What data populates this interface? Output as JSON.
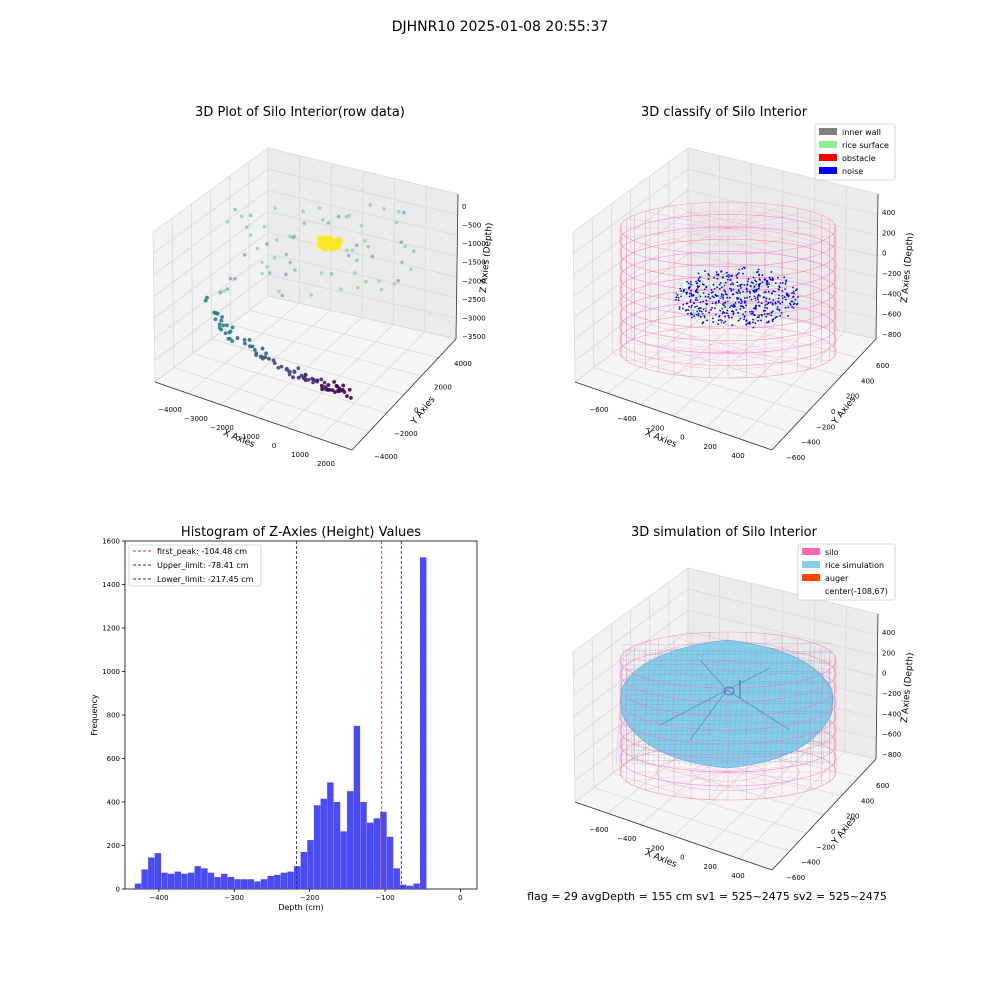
{
  "suptitle": "DJHNR10 2025-01-08 20:55:37",
  "footer": "flag = 29  avgDepth = 155 cm  sv1 = 525~2475  sv2 = 525~2475",
  "colors": {
    "hist_bar": "#4b4bf5",
    "first_peak": "#e03030",
    "limits": "#2222cc",
    "inner_wall": "#808080",
    "rice_surface": "#90ee90",
    "obstacle": "#ff0000",
    "noise": "#0000ff",
    "silo": "#ff69b4",
    "rice_simulation": "#87ceeb",
    "auger": "#ff4500"
  },
  "chart_data": [
    {
      "type": "scatter",
      "projection": "3d",
      "title": "3D Plot of Silo Interior(row data)",
      "xlabel": "X Axies",
      "ylabel": "Y Axies",
      "zlabel": "Z Axies (Depth)",
      "x_ticks": [
        "−4000",
        "−3000",
        "−2000",
        "−1000",
        "0",
        "1000",
        "2000"
      ],
      "y_ticks": [
        "−4000",
        "−2000",
        "0",
        "2000",
        "4000"
      ],
      "z_ticks": [
        "0",
        "−500",
        "−1000",
        "−1500",
        "−2000",
        "−2500",
        "−3000",
        "−3500"
      ],
      "xlim": [
        -4500,
        2500
      ],
      "ylim": [
        -4500,
        4500
      ],
      "zlim": [
        -3700,
        100
      ],
      "colormap": "viridis (by depth)",
      "grid": true
    },
    {
      "type": "scatter",
      "projection": "3d",
      "title": "3D classify of Silo Interior",
      "xlabel": "X Axies",
      "ylabel": "Y Axies",
      "zlabel": "Z Axies (Depth)",
      "x_ticks": [
        "−600",
        "−400",
        "−200",
        "0",
        "200",
        "400"
      ],
      "y_ticks": [
        "−600",
        "−400",
        "−200",
        "0",
        "200",
        "400",
        "600"
      ],
      "z_ticks": [
        "400",
        "200",
        "0",
        "−200",
        "−400",
        "−600",
        "−800"
      ],
      "xlim": [
        -700,
        500
      ],
      "ylim": [
        -650,
        650
      ],
      "zlim": [
        -900,
        500
      ],
      "legend": [
        "inner wall",
        "rice surface",
        "obstacle",
        "noise"
      ],
      "legend_position": "top-right",
      "grid": true
    },
    {
      "type": "bar",
      "subtype": "histogram",
      "title": "Histogram of Z-Axies (Height) Values",
      "xlabel": "Depth (cm)",
      "ylabel": "Frequency",
      "xlim": [
        -445,
        22
      ],
      "ylim": [
        0,
        1600
      ],
      "x_ticks": [
        -400,
        -300,
        -200,
        -100,
        0
      ],
      "y_ticks": [
        0,
        200,
        400,
        600,
        800,
        1000,
        1200,
        1400,
        1600
      ],
      "bin_start": -432,
      "bin_width": 8.8,
      "values": [
        25,
        90,
        145,
        165,
        75,
        70,
        80,
        70,
        75,
        105,
        95,
        75,
        55,
        70,
        55,
        45,
        45,
        45,
        35,
        45,
        60,
        65,
        75,
        80,
        105,
        170,
        225,
        385,
        415,
        490,
        400,
        265,
        450,
        750,
        400,
        305,
        325,
        355,
        240,
        95,
        20,
        15,
        25,
        1525
      ],
      "vlines": [
        {
          "label": "first_peak: -104.48 cm",
          "x": -104.48,
          "color": "#e03030"
        },
        {
          "label": "Upper_limit: -78.41 cm",
          "x": -78.41,
          "color": "#2222cc"
        },
        {
          "label": "Lower_limit: -217.45 cm",
          "x": -217.45,
          "color": "#2222cc"
        }
      ],
      "legend_position": "top-left",
      "grid": false
    },
    {
      "type": "surface",
      "projection": "3d",
      "title": "3D simulation of Silo Interior",
      "xlabel": "X Axies",
      "ylabel": "Y Axies",
      "zlabel": "Z Axies (Depth)",
      "x_ticks": [
        "−600",
        "−400",
        "−200",
        "0",
        "200",
        "400"
      ],
      "y_ticks": [
        "−600",
        "−400",
        "−200",
        "0",
        "200",
        "400",
        "600"
      ],
      "z_ticks": [
        "400",
        "200",
        "0",
        "−200",
        "−400",
        "−600",
        "−800"
      ],
      "legend": [
        "silo",
        "rice simulation",
        "auger",
        "center(-108,67)"
      ],
      "legend_position": "top-right",
      "grid": true
    }
  ]
}
